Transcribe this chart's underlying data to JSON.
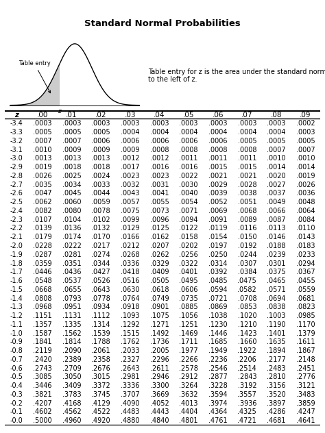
{
  "title": "Standard Normal Probabilities",
  "table_entry_text": "Table entry for z is the area under the standard normal curve\nto the left of z.",
  "col_headers": [
    "z",
    ".00",
    ".01",
    ".02",
    ".03",
    ".04",
    ".05",
    ".06",
    ".07",
    ".08",
    ".09"
  ],
  "rows": [
    [
      "-3.4",
      ".0003",
      ".0003",
      ".0003",
      ".0003",
      ".0003",
      ".0003",
      ".0003",
      ".0003",
      ".0003",
      ".0002"
    ],
    [
      "-3.3",
      ".0005",
      ".0005",
      ".0005",
      ".0004",
      ".0004",
      ".0004",
      ".0004",
      ".0004",
      ".0004",
      ".0003"
    ],
    [
      "-3.2",
      ".0007",
      ".0007",
      ".0006",
      ".0006",
      ".0006",
      ".0006",
      ".0006",
      ".0005",
      ".0005",
      ".0005"
    ],
    [
      "-3.1",
      ".0010",
      ".0009",
      ".0009",
      ".0009",
      ".0008",
      ".0008",
      ".0008",
      ".0008",
      ".0007",
      ".0007"
    ],
    [
      "-3.0",
      ".0013",
      ".0013",
      ".0013",
      ".0012",
      ".0012",
      ".0011",
      ".0011",
      ".0011",
      ".0010",
      ".0010"
    ],
    [
      "-2.9",
      ".0019",
      ".0018",
      ".0018",
      ".0017",
      ".0016",
      ".0016",
      ".0015",
      ".0015",
      ".0014",
      ".0014"
    ],
    [
      "-2.8",
      ".0026",
      ".0025",
      ".0024",
      ".0023",
      ".0023",
      ".0022",
      ".0021",
      ".0021",
      ".0020",
      ".0019"
    ],
    [
      "-2.7",
      ".0035",
      ".0034",
      ".0033",
      ".0032",
      ".0031",
      ".0030",
      ".0029",
      ".0028",
      ".0027",
      ".0026"
    ],
    [
      "-2.6",
      ".0047",
      ".0045",
      ".0044",
      ".0043",
      ".0041",
      ".0040",
      ".0039",
      ".0038",
      ".0037",
      ".0036"
    ],
    [
      "-2.5",
      ".0062",
      ".0060",
      ".0059",
      ".0057",
      ".0055",
      ".0054",
      ".0052",
      ".0051",
      ".0049",
      ".0048"
    ],
    [
      "-2.4",
      ".0082",
      ".0080",
      ".0078",
      ".0075",
      ".0073",
      ".0071",
      ".0069",
      ".0068",
      ".0066",
      ".0064"
    ],
    [
      "-2.3",
      ".0107",
      ".0104",
      ".0102",
      ".0099",
      ".0096",
      ".0094",
      ".0091",
      ".0089",
      ".0087",
      ".0084"
    ],
    [
      "-2.2",
      ".0139",
      ".0136",
      ".0132",
      ".0129",
      ".0125",
      ".0122",
      ".0119",
      ".0116",
      ".0113",
      ".0110"
    ],
    [
      "-2.1",
      ".0179",
      ".0174",
      ".0170",
      ".0166",
      ".0162",
      ".0158",
      ".0154",
      ".0150",
      ".0146",
      ".0143"
    ],
    [
      "-2.0",
      ".0228",
      ".0222",
      ".0217",
      ".0212",
      ".0207",
      ".0202",
      ".0197",
      ".0192",
      ".0188",
      ".0183"
    ],
    [
      "-1.9",
      ".0287",
      ".0281",
      ".0274",
      ".0268",
      ".0262",
      ".0256",
      ".0250",
      ".0244",
      ".0239",
      ".0233"
    ],
    [
      "-1.8",
      ".0359",
      ".0351",
      ".0344",
      ".0336",
      ".0329",
      ".0322",
      ".0314",
      ".0307",
      ".0301",
      ".0294"
    ],
    [
      "-1.7",
      ".0446",
      ".0436",
      ".0427",
      ".0418",
      ".0409",
      ".0401",
      ".0392",
      ".0384",
      ".0375",
      ".0367"
    ],
    [
      "-1.6",
      ".0548",
      ".0537",
      ".0526",
      ".0516",
      ".0505",
      ".0495",
      ".0485",
      ".0475",
      ".0465",
      ".0455"
    ],
    [
      "-1.5",
      ".0668",
      ".0655",
      ".0643",
      ".0630",
      ".0618",
      ".0606",
      ".0594",
      ".0582",
      ".0571",
      ".0559"
    ],
    [
      "-1.4",
      ".0808",
      ".0793",
      ".0778",
      ".0764",
      ".0749",
      ".0735",
      ".0721",
      ".0708",
      ".0694",
      ".0681"
    ],
    [
      "-1.3",
      ".0968",
      ".0951",
      ".0934",
      ".0918",
      ".0901",
      ".0885",
      ".0869",
      ".0853",
      ".0838",
      ".0823"
    ],
    [
      "-1.2",
      ".1151",
      ".1131",
      ".1112",
      ".1093",
      ".1075",
      ".1056",
      ".1038",
      ".1020",
      ".1003",
      ".0985"
    ],
    [
      "-1.1",
      ".1357",
      ".1335",
      ".1314",
      ".1292",
      ".1271",
      ".1251",
      ".1230",
      ".1210",
      ".1190",
      ".1170"
    ],
    [
      "-1.0",
      ".1587",
      ".1562",
      ".1539",
      ".1515",
      ".1492",
      ".1469",
      ".1446",
      ".1423",
      ".1401",
      ".1379"
    ],
    [
      "-0.9",
      ".1841",
      ".1814",
      ".1788",
      ".1762",
      ".1736",
      ".1711",
      ".1685",
      ".1660",
      ".1635",
      ".1611"
    ],
    [
      "-0.8",
      ".2119",
      ".2090",
      ".2061",
      ".2033",
      ".2005",
      ".1977",
      ".1949",
      ".1922",
      ".1894",
      ".1867"
    ],
    [
      "-0.7",
      ".2420",
      ".2389",
      ".2358",
      ".2327",
      ".2296",
      ".2266",
      ".2236",
      ".2206",
      ".2177",
      ".2148"
    ],
    [
      "-0.6",
      ".2743",
      ".2709",
      ".2676",
      ".2643",
      ".2611",
      ".2578",
      ".2546",
      ".2514",
      ".2483",
      ".2451"
    ],
    [
      "-0.5",
      ".3085",
      ".3050",
      ".3015",
      ".2981",
      ".2946",
      ".2912",
      ".2877",
      ".2843",
      ".2810",
      ".2776"
    ],
    [
      "-0.4",
      ".3446",
      ".3409",
      ".3372",
      ".3336",
      ".3300",
      ".3264",
      ".3228",
      ".3192",
      ".3156",
      ".3121"
    ],
    [
      "-0.3",
      ".3821",
      ".3783",
      ".3745",
      ".3707",
      ".3669",
      ".3632",
      ".3594",
      ".3557",
      ".3520",
      ".3483"
    ],
    [
      "-0.2",
      ".4207",
      ".4168",
      ".4129",
      ".4090",
      ".4052",
      ".4013",
      ".3974",
      ".3936",
      ".3897",
      ".3859"
    ],
    [
      "-0.1",
      ".4602",
      ".4562",
      ".4522",
      ".4483",
      ".4443",
      ".4404",
      ".4364",
      ".4325",
      ".4286",
      ".4247"
    ],
    [
      "-0.0",
      ".5000",
      ".4960",
      ".4920",
      ".4880",
      ".4840",
      ".4801",
      ".4761",
      ".4721",
      ".4681",
      ".4641"
    ]
  ],
  "bg_color": "#ffffff",
  "text_color": "#000000",
  "curve_color": "#000000",
  "fill_color": "#cccccc",
  "title_fontsize": 9.5,
  "header_fontsize": 7.5,
  "data_fontsize": 7.0,
  "annotation_fontsize": 6.0,
  "desc_fontsize": 7.0
}
